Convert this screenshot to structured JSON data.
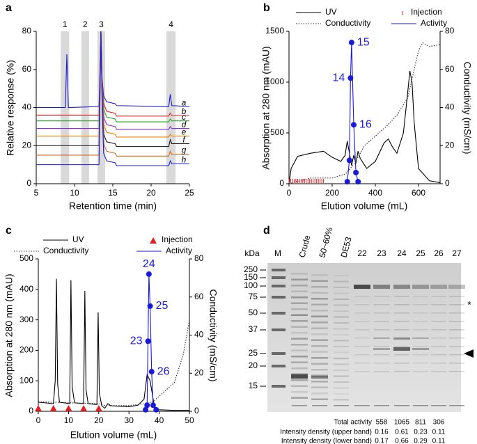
{
  "chart_data": [
    {
      "type": "line",
      "panel": "a",
      "xlabel": "Retention time (min)",
      "ylabel": "Relative response (%)",
      "xlim": [
        5,
        25
      ],
      "xticks": [
        5,
        10,
        15,
        20,
        25
      ],
      "ylim": [
        0,
        80
      ],
      "yticks": [
        0,
        20,
        40,
        60,
        80
      ],
      "bands": [
        {
          "label": "1",
          "range": [
            8.2,
            9.3
          ]
        },
        {
          "label": "2",
          "range": [
            10.9,
            11.9
          ]
        },
        {
          "label": "3",
          "range": [
            13.0,
            14.0
          ]
        },
        {
          "label": "4",
          "range": [
            22.0,
            23.2
          ]
        }
      ],
      "x": [
        5,
        8.8,
        9.0,
        9.2,
        13.2,
        13.45,
        13.6,
        13.8,
        14.2,
        15.3,
        15.5,
        22.3,
        22.5,
        22.7,
        25
      ],
      "series": [
        {
          "name": "a",
          "color": "#1a1ad6",
          "values": [
            40,
            40,
            68,
            40,
            40.5,
            80,
            55,
            46,
            43,
            42,
            41,
            40.5,
            47,
            41,
            40.5
          ]
        },
        {
          "name": "b",
          "color": "#e02020",
          "values": [
            36,
            36,
            36,
            36,
            36,
            80,
            55,
            42,
            38,
            37,
            35.5,
            35.5,
            37,
            35.8,
            35.8
          ]
        },
        {
          "name": "c",
          "color": "#1fa01f",
          "values": [
            33,
            33,
            33,
            33,
            33,
            80,
            52,
            39,
            35,
            34,
            32.5,
            32.5,
            34,
            33,
            33
          ]
        },
        {
          "name": "d",
          "color": "#8a2be2",
          "values": [
            29,
            29,
            29,
            29,
            29,
            80,
            50,
            35,
            31,
            30,
            28.5,
            28.5,
            30,
            29,
            29
          ]
        },
        {
          "name": "e",
          "color": "#f08000",
          "values": [
            25,
            25,
            25,
            25,
            25,
            80,
            48,
            31,
            27,
            26,
            24.5,
            24.5,
            26,
            25,
            25
          ]
        },
        {
          "name": "f",
          "color": "#111111",
          "values": [
            20,
            20,
            20,
            20,
            20,
            80,
            46,
            26,
            22,
            21,
            19.5,
            19.5,
            23,
            21,
            21
          ]
        },
        {
          "name": "g",
          "color": "#d2691e",
          "values": [
            15,
            15,
            15,
            15,
            15,
            80,
            44,
            21,
            17,
            16,
            14.5,
            14.5,
            17,
            15.5,
            15.5
          ]
        },
        {
          "name": "h",
          "color": "#1a1ad6",
          "values": [
            10,
            10,
            10,
            10,
            10,
            80,
            42,
            16,
            12,
            11,
            9.5,
            9.5,
            12,
            10.5,
            10.5
          ]
        }
      ]
    },
    {
      "type": "line",
      "panel": "b",
      "xlabel": "Elution volume (mL)",
      "ylabel": "Absorption at 280 nm (mAU)",
      "y2label": "Conductivity (mS/cm)",
      "xlim": [
        0,
        700
      ],
      "xticks": [
        0,
        200,
        400,
        600
      ],
      "ylim": [
        0,
        1500
      ],
      "yticks": [
        0,
        500,
        1000,
        1500
      ],
      "y2lim": [
        0,
        80
      ],
      "y2ticks": [
        0,
        20,
        40,
        60,
        80
      ],
      "series": [
        {
          "name": "UV",
          "color": "#000000",
          "x": [
            0,
            10,
            40,
            100,
            160,
            200,
            240,
            260,
            270,
            280,
            290,
            300,
            310,
            320,
            330,
            360,
            400,
            440,
            460,
            480,
            500,
            530,
            550,
            560,
            570,
            580,
            600,
            650,
            700
          ],
          "values": [
            0,
            150,
            270,
            300,
            320,
            260,
            220,
            280,
            420,
            300,
            180,
            280,
            200,
            320,
            250,
            150,
            220,
            400,
            440,
            360,
            300,
            500,
            900,
            1110,
            1000,
            600,
            150,
            30,
            10
          ]
        },
        {
          "name": "Conductivity",
          "color": "#333333",
          "style": "dotted",
          "axis": "y2",
          "x": [
            0,
            100,
            160,
            200,
            260,
            300,
            350,
            400,
            450,
            500,
            550,
            600,
            620,
            650,
            700
          ],
          "values": [
            0,
            3,
            3,
            3,
            5,
            10,
            20,
            25,
            30,
            36,
            45,
            70,
            74,
            72,
            73
          ]
        },
        {
          "name": "Injection",
          "color": "#e02020",
          "line": false,
          "marker": "tick",
          "x": [
            0,
            8,
            16,
            24,
            32,
            40,
            48,
            56,
            64,
            72,
            80,
            88,
            96,
            104,
            112,
            120,
            128,
            136,
            144,
            152,
            160
          ],
          "values": [
            0,
            0,
            0,
            0,
            0,
            0,
            0,
            0,
            0,
            0,
            0,
            0,
            0,
            0,
            0,
            0,
            0,
            0,
            0,
            0,
            0
          ]
        },
        {
          "name": "Activity",
          "color": "#1a1ad6",
          "marker": "dot",
          "x": [
            270,
            280,
            285,
            290,
            300,
            310,
            320
          ],
          "values": [
            20,
            230,
            1040,
            1390,
            580,
            110,
            20
          ],
          "labels": [
            null,
            null,
            "14",
            "15",
            "16",
            null,
            null
          ]
        }
      ]
    },
    {
      "type": "line",
      "panel": "c",
      "xlabel": "Elution volume (mL)",
      "ylabel": "Absorption at 280 nm (mAU)",
      "y2label": "Conductivity (mS/cm)",
      "xlim": [
        0,
        50
      ],
      "xticks": [
        0,
        10,
        20,
        30,
        40,
        50
      ],
      "ylim": [
        0,
        500
      ],
      "yticks": [
        0,
        100,
        200,
        300,
        400,
        500
      ],
      "y2lim": [
        0,
        80
      ],
      "y2ticks": [
        0,
        20,
        40,
        60,
        80
      ],
      "series": [
        {
          "name": "UV",
          "color": "#000000",
          "x": [
            0,
            2,
            5,
            5.6,
            6,
            6.4,
            7,
            10.4,
            10.8,
            11.2,
            12,
            15,
            15.4,
            15.8,
            16.5,
            19.4,
            19.8,
            20.2,
            21,
            22,
            23,
            24,
            30,
            33,
            35,
            36,
            37,
            38,
            38.5,
            40,
            45,
            50
          ],
          "values": [
            30,
            28,
            25,
            100,
            435,
            90,
            30,
            25,
            430,
            80,
            28,
            25,
            395,
            70,
            25,
            22,
            325,
            60,
            18,
            10,
            25,
            18,
            15,
            20,
            40,
            120,
            100,
            40,
            10,
            5,
            3,
            3
          ]
        },
        {
          "name": "Conductivity",
          "color": "#333333",
          "style": "dotted",
          "axis": "y2",
          "x": [
            0,
            20,
            22,
            30,
            35,
            38,
            40,
            45,
            48,
            50
          ],
          "values": [
            5,
            4,
            3,
            3,
            4,
            5,
            8,
            15,
            30,
            48
          ]
        },
        {
          "name": "Injection",
          "color": "#e02020",
          "line": false,
          "marker": "triangle",
          "x": [
            0,
            5,
            10,
            15,
            20
          ],
          "values": [
            0,
            0,
            0,
            0,
            0
          ]
        },
        {
          "name": "Activity",
          "color": "#1a1ad6",
          "marker": "dot",
          "x": [
            35.5,
            36,
            36.3,
            36.6,
            37,
            37.5,
            38,
            39
          ],
          "values": [
            5,
            20,
            230,
            450,
            345,
            130,
            20,
            5
          ],
          "labels": [
            null,
            null,
            "23",
            "24",
            "25",
            "26",
            null,
            null
          ]
        }
      ]
    }
  ],
  "gel": {
    "panel": "d",
    "unit": "kDa",
    "lanes": [
      "M",
      "Crude",
      "50~60%",
      "DE53",
      "22",
      "23",
      "24",
      "25",
      "26",
      "27"
    ],
    "markers": [
      250,
      150,
      100,
      75,
      50,
      37,
      25,
      20,
      15
    ],
    "annotation": "*",
    "table": [
      {
        "label": "Total activity",
        "values": [
          558,
          1065,
          811,
          306
        ]
      },
      {
        "label": "Intensity density (upper band)",
        "values": [
          0.16,
          0.61,
          0.23,
          0.11
        ]
      },
      {
        "label": "Intensity density (lower band)",
        "values": [
          0.17,
          0.66,
          0.29,
          0.11
        ]
      }
    ]
  }
}
